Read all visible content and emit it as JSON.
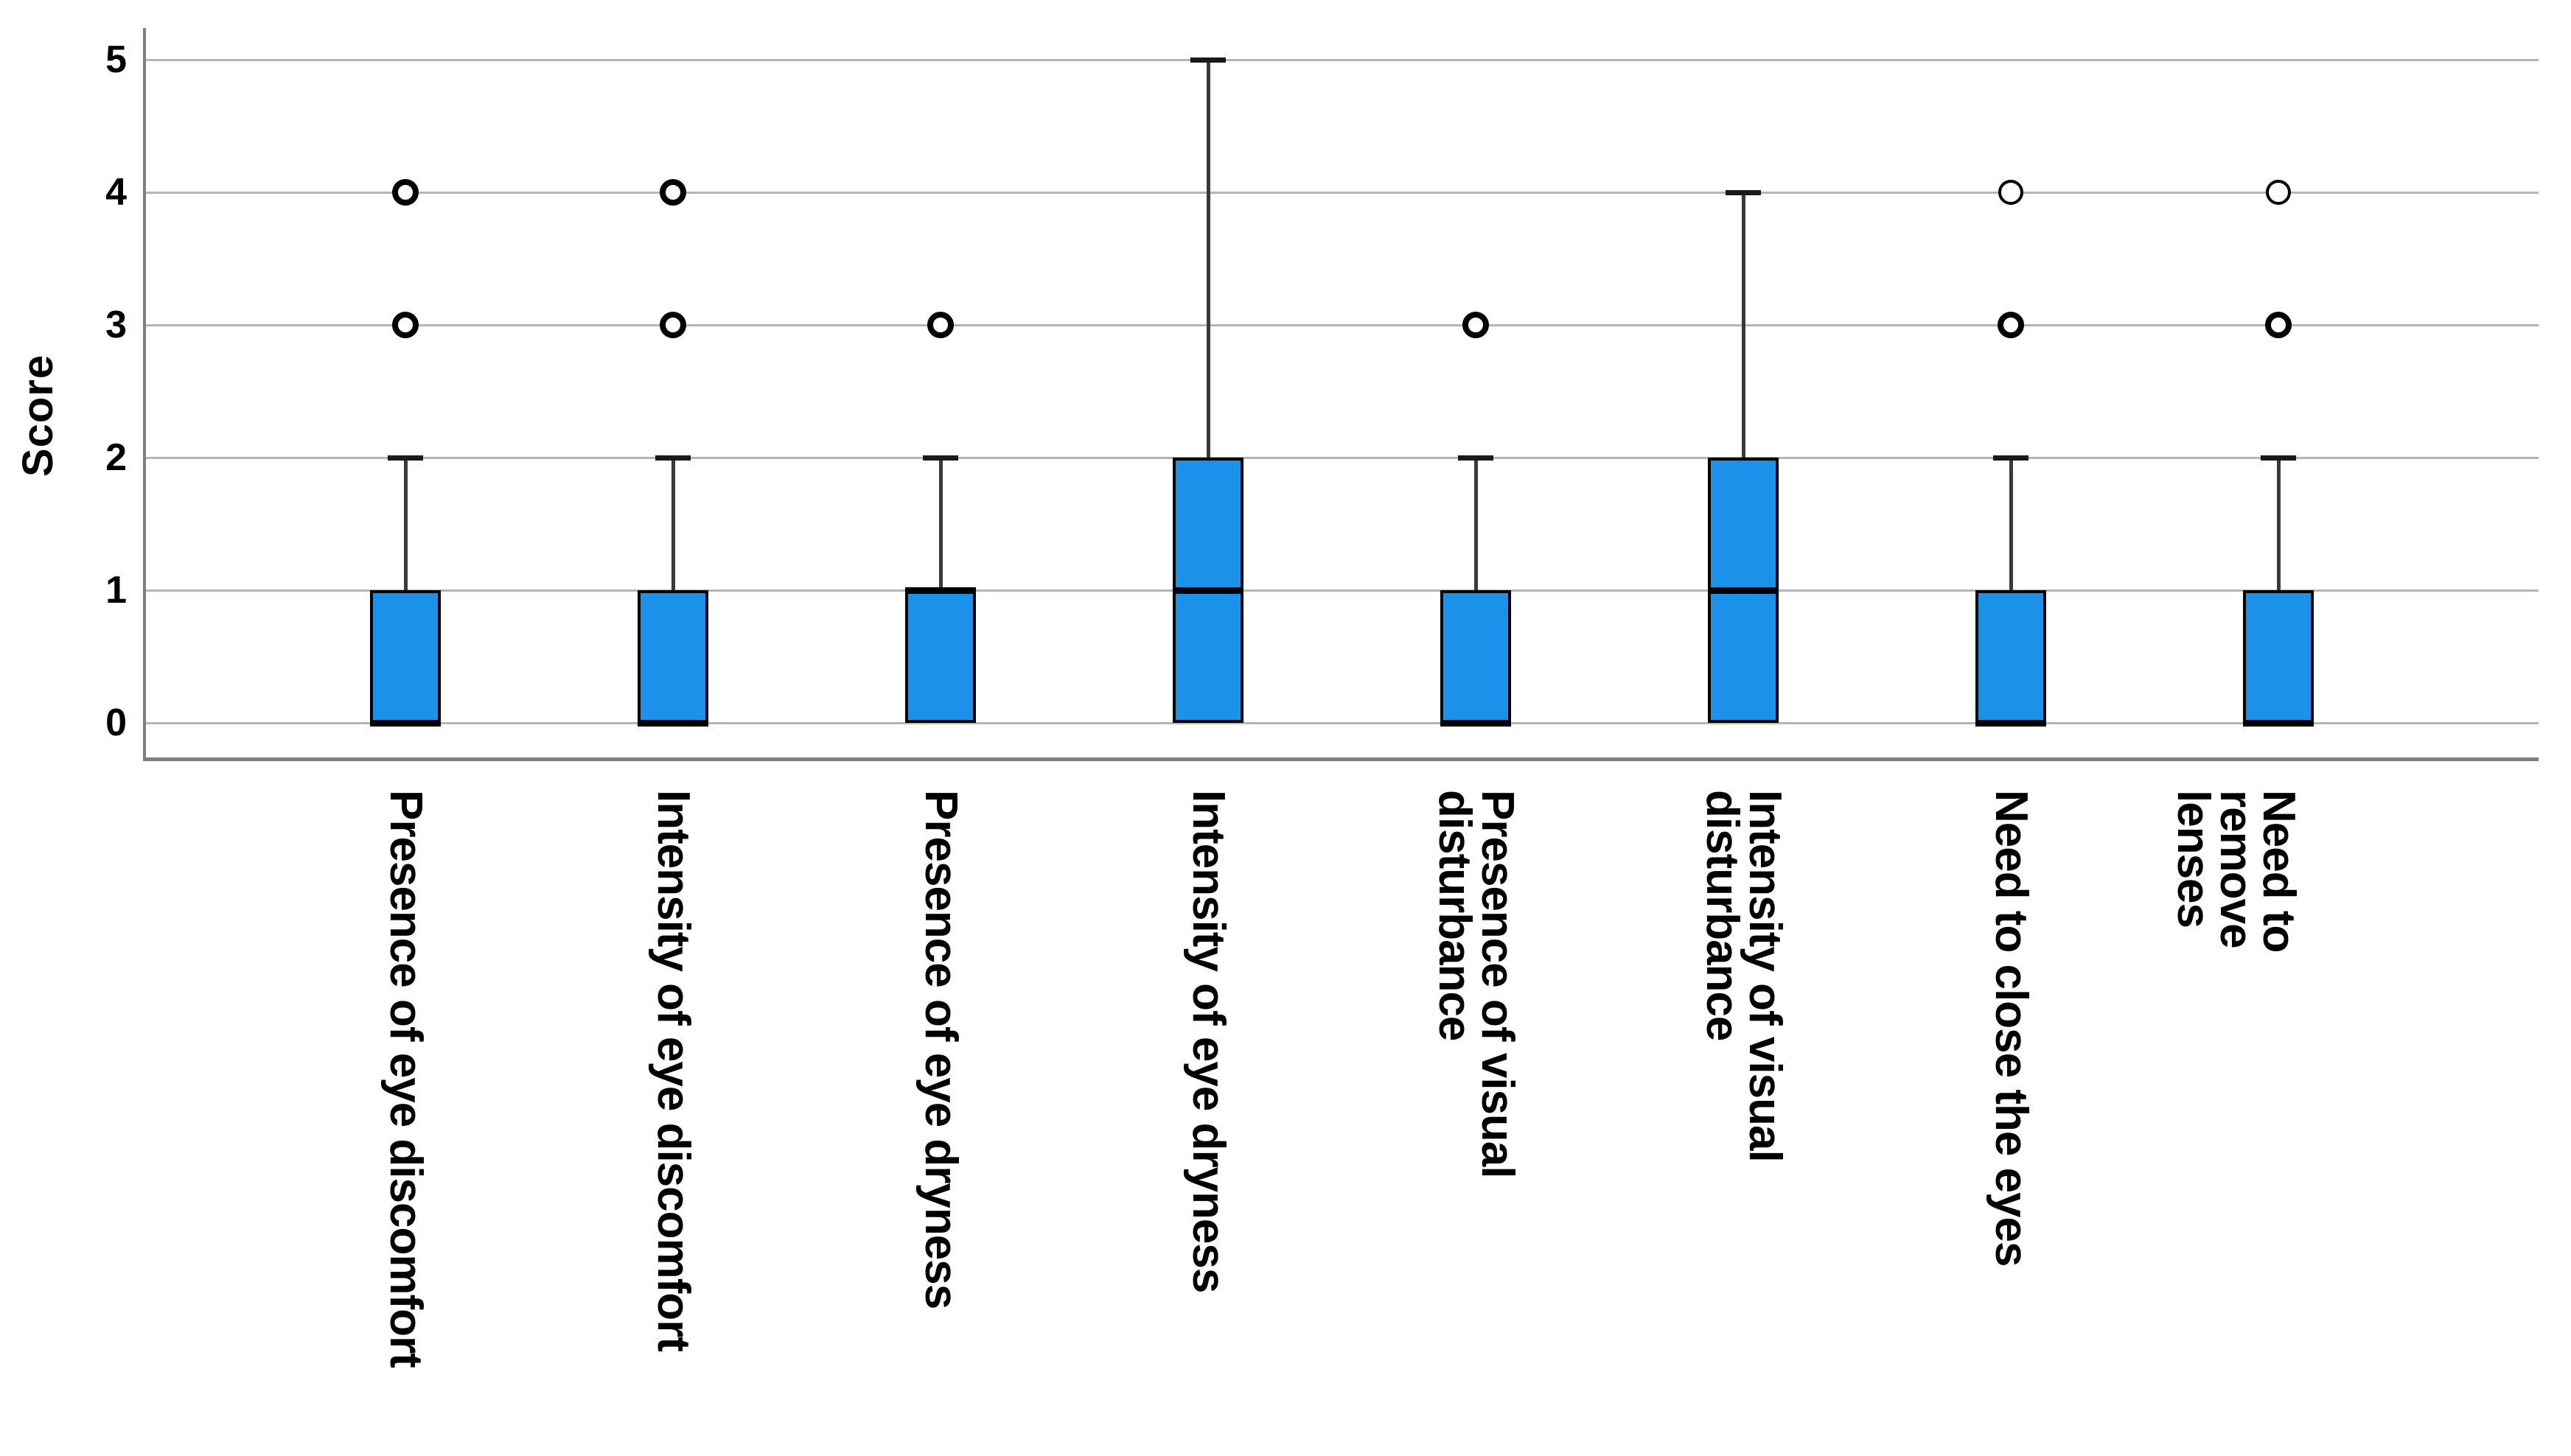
{
  "chart_data": {
    "type": "boxplot",
    "title": "",
    "ylabel": "Score",
    "xlabel": "",
    "ylim": [
      0,
      5
    ],
    "yticks": [
      0,
      1,
      2,
      3,
      4,
      5
    ],
    "grid": "horizontal",
    "legend": "none",
    "categories": [
      "Presence of eye discomfort",
      "Intensity of eye discomfort",
      "Presence of eye dryness",
      "Intensity of eye dryness",
      "Presence of visual\ndisturbance",
      "Intensity of visual\ndisturbance",
      "Need to close the eyes",
      "Need to remove lenses"
    ],
    "series": [
      {
        "name": "Presence of eye discomfort",
        "min": 0,
        "q1": 0,
        "median": 0,
        "q3": 1,
        "max": 2,
        "outliers": [
          {
            "value": 3,
            "style": "bold"
          },
          {
            "value": 4,
            "style": "bold"
          }
        ]
      },
      {
        "name": "Intensity of eye discomfort",
        "min": 0,
        "q1": 0,
        "median": 0,
        "q3": 1,
        "max": 2,
        "outliers": [
          {
            "value": 3,
            "style": "bold"
          },
          {
            "value": 4,
            "style": "bold"
          }
        ]
      },
      {
        "name": "Presence of eye dryness",
        "min": 0,
        "q1": 0,
        "median": 1,
        "q3": 1,
        "max": 2,
        "outliers": [
          {
            "value": 3,
            "style": "bold"
          }
        ]
      },
      {
        "name": "Intensity of eye dryness",
        "min": 0,
        "q1": 0,
        "median": 1,
        "q3": 2,
        "max": 5,
        "outliers": []
      },
      {
        "name": "Presence of visual\ndisturbance",
        "min": 0,
        "q1": 0,
        "median": 0,
        "q3": 1,
        "max": 2,
        "outliers": [
          {
            "value": 3,
            "style": "bold"
          }
        ]
      },
      {
        "name": "Intensity of visual\ndisturbance",
        "min": 0,
        "q1": 0,
        "median": 1,
        "q3": 2,
        "max": 4,
        "outliers": []
      },
      {
        "name": "Need to close the eyes",
        "min": 0,
        "q1": 0,
        "median": 0,
        "q3": 1,
        "max": 2,
        "outliers": [
          {
            "value": 3,
            "style": "bold"
          },
          {
            "value": 4,
            "style": "light"
          }
        ]
      },
      {
        "name": "Need to remove lenses",
        "min": 0,
        "q1": 0,
        "median": 0,
        "q3": 1,
        "max": 2,
        "outliers": [
          {
            "value": 3,
            "style": "bold"
          },
          {
            "value": 4,
            "style": "light"
          }
        ]
      }
    ]
  },
  "colors": {
    "box_fill": "#1C91E9",
    "box_border": "#000000",
    "median": "#000000",
    "whisker": "#3a3a3a",
    "whisker_cap": "#1a1a1a",
    "outlier_ring": "#000000",
    "gridline": "#b5b5b5",
    "axis": "#7f7f7f",
    "text": "#000000",
    "background": "#ffffff"
  }
}
